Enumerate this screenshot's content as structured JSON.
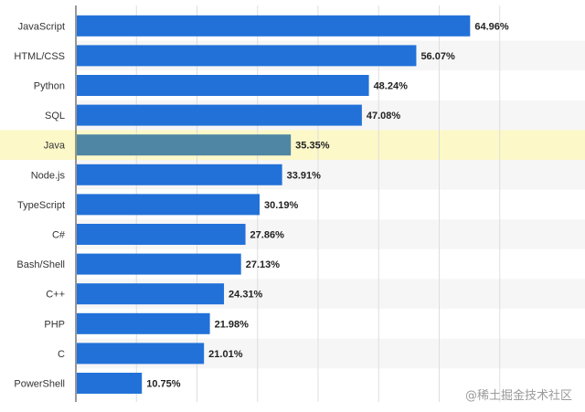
{
  "chart_data": {
    "type": "bar",
    "orientation": "horizontal",
    "categories": [
      "JavaScript",
      "HTML/CSS",
      "Python",
      "SQL",
      "Java",
      "Node.js",
      "TypeScript",
      "C#",
      "Bash/Shell",
      "C++",
      "PHP",
      "C",
      "PowerShell"
    ],
    "values": [
      64.96,
      56.07,
      48.24,
      47.08,
      35.35,
      33.91,
      30.19,
      27.86,
      27.13,
      24.31,
      21.98,
      21.01,
      10.75
    ],
    "value_labels": [
      "64.96%",
      "56.07%",
      "48.24%",
      "47.08%",
      "35.35%",
      "33.91%",
      "30.19%",
      "27.86%",
      "27.13%",
      "24.31%",
      "21.98%",
      "21.01%",
      "10.75%"
    ],
    "xlim": [
      0,
      75
    ],
    "grid": true,
    "highlighted_category": "Java",
    "title": "",
    "xlabel": "",
    "ylabel": ""
  },
  "colors": {
    "bar": "#2271d9",
    "highlight_bar": "#4f86a3",
    "highlight_band": "#fcf8c8",
    "stripe": "#f6f6f6",
    "grid": "#dedede"
  },
  "watermark": "@稀土掘金技术社区"
}
